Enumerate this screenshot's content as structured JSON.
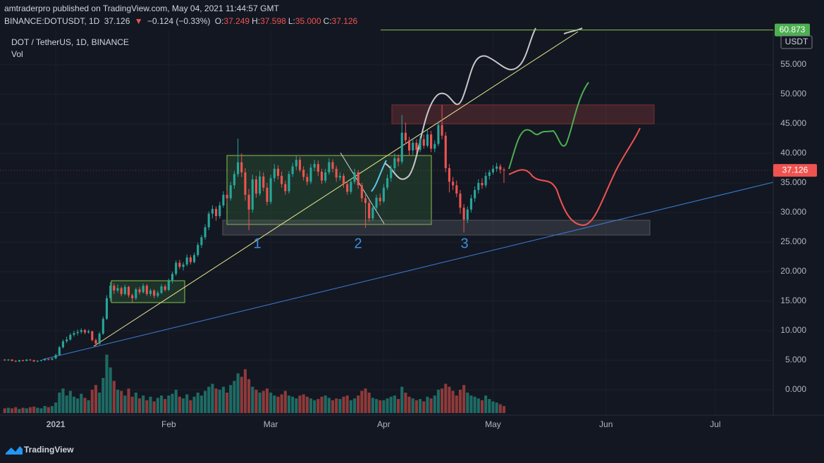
{
  "header": {
    "line1": "amtraderpro published on TradingView.com, May 04, 2021 11:44:57 GMT",
    "symbol": "BINANCE:DOTUSDT, 1D",
    "price": "37.126",
    "arrow": "▼",
    "change": "−0.124 (−0.33%)",
    "ohlc": [
      {
        "key": "O:",
        "value": "37.249"
      },
      {
        "key": "H:",
        "value": "37.598"
      },
      {
        "key": "L:",
        "value": "35.000"
      },
      {
        "key": "C:",
        "value": "37.126"
      }
    ]
  },
  "legend": {
    "title": "DOT / TetherUS, 1D, BINANCE",
    "volume": "Vol"
  },
  "footer": {
    "brand": "TradingView"
  },
  "chart_data": {
    "type": "candlestick",
    "up_color": "#26a69a",
    "down_color": "#ef5350",
    "volume_up_color": "#1e6b64",
    "volume_down_color": "#8e3a3a",
    "currency": "USDT",
    "ylim": [
      -4.29,
      60.95
    ],
    "yticks": [
      {
        "value": 0,
        "label": "0.000"
      },
      {
        "value": 5,
        "label": "5.000"
      },
      {
        "value": 10,
        "label": "10.000"
      },
      {
        "value": 15,
        "label": "15.000"
      },
      {
        "value": 20,
        "label": "20.000"
      },
      {
        "value": 25,
        "label": "25.000"
      },
      {
        "value": 30,
        "label": "30.000"
      },
      {
        "value": 35,
        "label": "35.000"
      },
      {
        "value": 40,
        "label": "40.000"
      },
      {
        "value": 45,
        "label": "45.000"
      },
      {
        "value": 50,
        "label": "50.000"
      },
      {
        "value": 55,
        "label": "55.000"
      }
    ],
    "xlim": [
      -1.3,
      210.9
    ],
    "xticks": [
      {
        "value": 14,
        "label": "2021"
      },
      {
        "value": 45,
        "label": "Feb"
      },
      {
        "value": 73,
        "label": "Mar"
      },
      {
        "value": 104,
        "label": "Apr"
      },
      {
        "value": 134,
        "label": "May"
      },
      {
        "value": 165,
        "label": "Jun"
      },
      {
        "value": 195,
        "label": "Jul"
      }
    ],
    "last_price": {
      "value": 37.126,
      "label": "37.126"
    },
    "top_line": {
      "value": 60.873,
      "label": "60.873"
    },
    "wave_labels": [
      "1",
      "2",
      "3"
    ],
    "candles": [
      [
        5.1,
        5.2,
        4.9,
        5.0
      ],
      [
        5.0,
        5.2,
        4.9,
        5.1
      ],
      [
        5.1,
        5.2,
        4.8,
        4.9
      ],
      [
        4.9,
        5.0,
        4.7,
        4.8
      ],
      [
        4.8,
        5.1,
        4.7,
        5.0
      ],
      [
        5.0,
        5.1,
        4.8,
        4.9
      ],
      [
        4.9,
        5.2,
        4.8,
        5.1
      ],
      [
        5.1,
        5.2,
        4.9,
        5.0
      ],
      [
        5.0,
        5.1,
        4.7,
        4.8
      ],
      [
        4.8,
        5.0,
        4.7,
        4.9
      ],
      [
        4.9,
        5.1,
        4.8,
        5.0
      ],
      [
        5.0,
        5.3,
        4.9,
        5.2
      ],
      [
        5.2,
        5.3,
        5.0,
        5.1
      ],
      [
        5.1,
        5.4,
        5.0,
        5.3
      ],
      [
        5.3,
        6.1,
        5.2,
        5.9
      ],
      [
        5.9,
        7.4,
        5.8,
        7.2
      ],
      [
        7.2,
        8.5,
        7.0,
        8.2
      ],
      [
        8.2,
        9.0,
        7.9,
        8.5
      ],
      [
        8.5,
        9.6,
        8.3,
        9.3
      ],
      [
        9.3,
        10.0,
        9.0,
        9.6
      ],
      [
        9.6,
        10.2,
        9.2,
        9.8
      ],
      [
        9.8,
        10.4,
        9.5,
        10.1
      ],
      [
        10.1,
        10.3,
        9.4,
        9.7
      ],
      [
        9.7,
        10.2,
        9.5,
        9.9
      ],
      [
        9.9,
        10.0,
        8.2,
        8.4
      ],
      [
        8.4,
        8.7,
        7.3,
        7.8
      ],
      [
        7.8,
        9.8,
        7.6,
        9.5
      ],
      [
        9.5,
        12.4,
        9.3,
        12.0
      ],
      [
        12.0,
        16.0,
        11.8,
        15.5
      ],
      [
        15.5,
        18.2,
        15.0,
        17.6
      ],
      [
        17.6,
        18.0,
        16.2,
        16.8
      ],
      [
        16.8,
        17.8,
        16.4,
        17.2
      ],
      [
        17.2,
        17.5,
        15.8,
        16.2
      ],
      [
        16.2,
        17.8,
        16.0,
        17.4
      ],
      [
        17.4,
        17.6,
        15.6,
        16.0
      ],
      [
        16.0,
        16.3,
        14.8,
        15.5
      ],
      [
        15.5,
        17.3,
        15.2,
        17.0
      ],
      [
        17.0,
        17.4,
        16.1,
        16.5
      ],
      [
        16.5,
        18.0,
        16.3,
        17.6
      ],
      [
        17.6,
        17.9,
        15.9,
        16.2
      ],
      [
        16.2,
        17.1,
        15.8,
        16.8
      ],
      [
        16.8,
        17.0,
        15.5,
        15.9
      ],
      [
        15.9,
        16.8,
        15.6,
        16.4
      ],
      [
        16.4,
        17.9,
        16.2,
        17.5
      ],
      [
        17.5,
        17.8,
        16.6,
        16.9
      ],
      [
        16.9,
        18.8,
        16.7,
        18.4
      ],
      [
        18.4,
        20.0,
        18.0,
        19.6
      ],
      [
        19.6,
        21.9,
        19.3,
        21.5
      ],
      [
        21.5,
        22.0,
        20.4,
        20.8
      ],
      [
        20.8,
        21.6,
        20.2,
        21.2
      ],
      [
        21.2,
        22.9,
        20.9,
        22.4
      ],
      [
        22.4,
        22.8,
        21.2,
        21.6
      ],
      [
        21.6,
        23.2,
        21.4,
        22.8
      ],
      [
        22.8,
        24.9,
        22.5,
        24.5
      ],
      [
        24.5,
        26.2,
        24.0,
        25.8
      ],
      [
        25.8,
        28.0,
        25.4,
        27.5
      ],
      [
        27.5,
        30.2,
        27.0,
        29.8
      ],
      [
        29.8,
        31.2,
        29.0,
        30.6
      ],
      [
        30.6,
        31.0,
        28.6,
        29.4
      ],
      [
        29.4,
        31.8,
        29.0,
        31.2
      ],
      [
        31.2,
        33.6,
        30.8,
        33.0
      ],
      [
        33.0,
        33.8,
        31.6,
        32.4
      ],
      [
        32.4,
        35.2,
        32.0,
        34.6
      ],
      [
        34.6,
        37.0,
        34.0,
        36.5
      ],
      [
        36.5,
        42.5,
        36.0,
        38.5
      ],
      [
        38.5,
        40.0,
        36.0,
        36.8
      ],
      [
        36.8,
        37.5,
        32.0,
        33.0
      ],
      [
        33.0,
        34.0,
        27.0,
        30.5
      ],
      [
        30.5,
        36.4,
        30.0,
        35.6
      ],
      [
        35.6,
        36.2,
        32.5,
        33.2
      ],
      [
        33.2,
        37.0,
        32.8,
        36.1
      ],
      [
        36.1,
        36.8,
        33.6,
        34.2
      ],
      [
        34.2,
        35.0,
        31.2,
        31.8
      ],
      [
        31.8,
        36.4,
        31.4,
        35.8
      ],
      [
        35.8,
        38.2,
        35.2,
        37.4
      ],
      [
        37.4,
        38.0,
        35.6,
        36.2
      ],
      [
        36.2,
        36.9,
        34.2,
        34.8
      ],
      [
        34.8,
        35.4,
        33.0,
        33.6
      ],
      [
        33.6,
        37.0,
        33.2,
        36.5
      ],
      [
        36.5,
        38.4,
        36.0,
        37.8
      ],
      [
        37.8,
        39.6,
        37.2,
        38.9
      ],
      [
        38.9,
        39.4,
        36.8,
        37.2
      ],
      [
        37.2,
        37.8,
        35.4,
        36.0
      ],
      [
        36.0,
        36.6,
        34.6,
        35.2
      ],
      [
        35.2,
        38.2,
        34.8,
        37.6
      ],
      [
        37.6,
        38.9,
        37.0,
        38.2
      ],
      [
        38.2,
        38.8,
        36.2,
        36.9
      ],
      [
        36.9,
        37.4,
        34.8,
        35.4
      ],
      [
        35.4,
        37.4,
        35.0,
        36.8
      ],
      [
        36.8,
        39.2,
        36.4,
        38.5
      ],
      [
        38.5,
        39.0,
        36.8,
        37.4
      ],
      [
        37.4,
        37.9,
        35.2,
        35.9
      ],
      [
        35.9,
        36.8,
        35.4,
        36.2
      ],
      [
        36.2,
        36.6,
        34.2,
        34.8
      ],
      [
        34.8,
        35.3,
        33.0,
        33.5
      ],
      [
        33.5,
        35.8,
        33.1,
        35.2
      ],
      [
        35.2,
        37.4,
        34.8,
        36.8
      ],
      [
        36.8,
        37.2,
        34.0,
        34.6
      ],
      [
        34.6,
        35.0,
        31.8,
        32.4
      ],
      [
        32.4,
        33.0,
        27.4,
        31.6
      ],
      [
        31.6,
        32.0,
        28.4,
        29.0
      ],
      [
        29.0,
        31.4,
        28.6,
        30.8
      ],
      [
        30.8,
        33.0,
        30.4,
        32.5
      ],
      [
        32.5,
        33.2,
        31.2,
        31.9
      ],
      [
        31.9,
        34.8,
        31.6,
        34.2
      ],
      [
        34.2,
        36.4,
        33.8,
        35.8
      ],
      [
        35.8,
        38.0,
        35.2,
        37.5
      ],
      [
        37.5,
        40.0,
        37.0,
        39.2
      ],
      [
        39.2,
        39.8,
        37.8,
        38.6
      ],
      [
        38.6,
        46.5,
        38.2,
        43.5
      ],
      [
        43.5,
        45.2,
        41.6,
        42.2
      ],
      [
        42.2,
        42.8,
        39.6,
        40.5
      ],
      [
        40.5,
        42.6,
        39.8,
        41.8
      ],
      [
        41.8,
        42.4,
        40.0,
        40.6
      ],
      [
        40.6,
        43.0,
        40.2,
        42.4
      ],
      [
        42.4,
        43.2,
        40.8,
        41.3
      ],
      [
        41.3,
        44.0,
        41.0,
        43.2
      ],
      [
        43.2,
        43.8,
        40.2,
        40.8
      ],
      [
        40.8,
        42.2,
        40.2,
        41.6
      ],
      [
        41.6,
        45.4,
        41.2,
        44.8
      ],
      [
        44.8,
        48.2,
        42.4,
        43.0
      ],
      [
        43.0,
        43.6,
        36.8,
        37.5
      ],
      [
        37.5,
        38.2,
        33.4,
        35.2
      ],
      [
        35.2,
        36.0,
        33.8,
        34.6
      ],
      [
        34.6,
        35.4,
        32.6,
        33.2
      ],
      [
        33.2,
        33.8,
        29.8,
        30.8
      ],
      [
        30.8,
        31.4,
        26.6,
        28.8
      ],
      [
        28.8,
        31.0,
        28.2,
        30.5
      ],
      [
        30.5,
        33.0,
        30.0,
        32.4
      ],
      [
        32.4,
        34.4,
        31.8,
        33.8
      ],
      [
        33.8,
        35.6,
        33.2,
        35.0
      ],
      [
        35.0,
        35.8,
        34.0,
        34.6
      ],
      [
        34.6,
        36.8,
        34.2,
        36.2
      ],
      [
        36.2,
        37.2,
        35.6,
        36.8
      ],
      [
        36.8,
        38.0,
        36.4,
        37.4
      ],
      [
        37.4,
        38.4,
        36.9,
        37.8
      ],
      [
        37.8,
        38.2,
        36.6,
        37.249
      ],
      [
        37.249,
        37.598,
        35.0,
        37.126
      ]
    ],
    "volume": [
      8,
      9,
      8,
      10,
      7,
      9,
      8,
      10,
      11,
      9,
      8,
      12,
      10,
      12,
      18,
      35,
      42,
      30,
      38,
      28,
      25,
      33,
      26,
      22,
      40,
      48,
      35,
      60,
      100,
      78,
      55,
      40,
      38,
      30,
      42,
      28,
      35,
      25,
      30,
      22,
      28,
      20,
      26,
      30,
      24,
      30,
      33,
      40,
      28,
      25,
      32,
      22,
      28,
      35,
      30,
      38,
      45,
      50,
      42,
      40,
      45,
      35,
      48,
      55,
      68,
      62,
      75,
      58,
      45,
      40,
      35,
      38,
      42,
      35,
      30,
      28,
      32,
      38,
      30,
      28,
      25,
      30,
      32,
      28,
      25,
      22,
      24,
      28,
      30,
      26,
      22,
      25,
      24,
      28,
      30,
      22,
      25,
      30,
      38,
      42,
      35,
      26,
      24,
      22,
      22,
      25,
      28,
      30,
      24,
      45,
      35,
      28,
      25,
      22,
      24,
      20,
      28,
      25,
      30,
      40,
      42,
      50,
      45,
      38,
      30,
      40,
      48,
      35,
      30,
      28,
      25,
      22,
      30,
      24,
      20,
      18,
      15,
      12
    ]
  }
}
